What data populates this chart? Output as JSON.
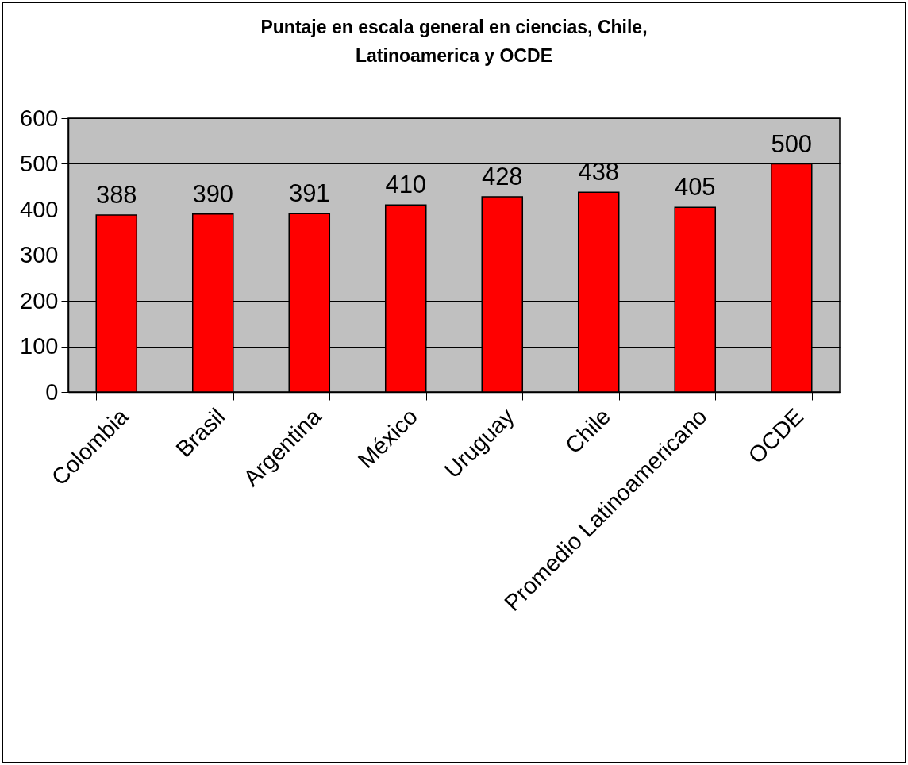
{
  "chart_data": {
    "type": "bar",
    "title": "Puntaje en escala general en ciencias, Chile, Latinoamerica y OCDE",
    "categories": [
      "Colombia",
      "Brasil",
      "Argentina",
      "México",
      "Uruguay",
      "Chile",
      "Promedio Latinoamericano",
      "OCDE"
    ],
    "values": [
      388,
      390,
      391,
      410,
      428,
      438,
      405,
      500
    ],
    "color": "#ff0000",
    "ylim": [
      0,
      600
    ],
    "yticks": [
      0,
      100,
      200,
      300,
      400,
      500,
      600
    ],
    "grid": "y",
    "data_labels": true
  }
}
